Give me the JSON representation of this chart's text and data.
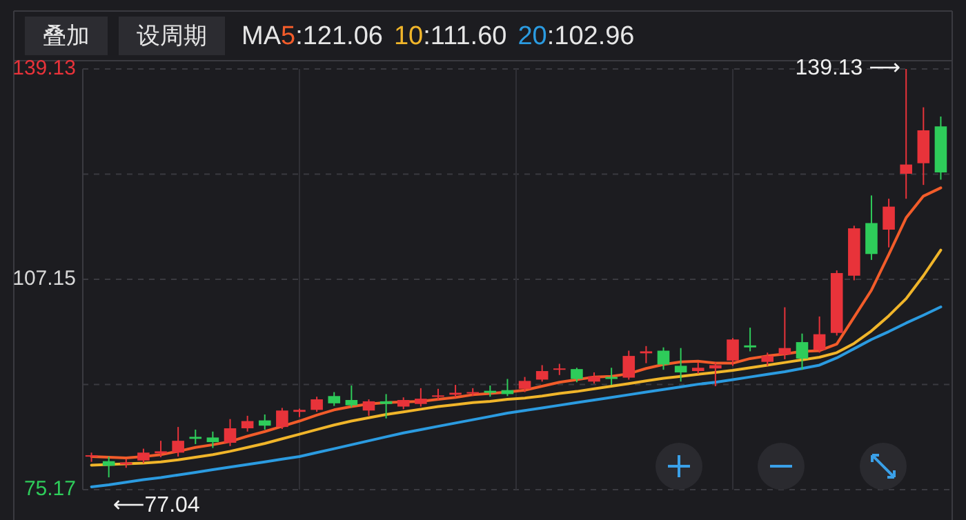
{
  "chart_data": {
    "type": "candlestick",
    "categories": [
      null,
      null,
      null,
      null,
      null,
      null,
      null,
      null,
      null,
      null,
      null,
      null,
      null,
      null,
      null,
      null,
      null,
      null,
      null,
      null,
      null,
      null,
      null,
      null,
      null,
      null,
      null,
      null,
      null,
      null,
      null,
      null,
      null,
      null,
      null,
      null,
      null,
      null,
      null,
      null,
      null,
      null,
      null,
      null,
      null,
      null,
      null,
      null,
      null,
      null
    ],
    "ohlc": [
      [
        80.2,
        80.8,
        79.4,
        80.4
      ],
      [
        79.5,
        80.2,
        77.04,
        78.8
      ],
      [
        79.0,
        79.8,
        78.5,
        79.3
      ],
      [
        79.6,
        81.4,
        79.2,
        80.8
      ],
      [
        80.7,
        82.6,
        80.1,
        81.0
      ],
      [
        80.8,
        84.7,
        80.2,
        82.6
      ],
      [
        83.2,
        84.3,
        82.1,
        82.9
      ],
      [
        83.1,
        84.0,
        81.5,
        82.4
      ],
      [
        82.3,
        85.9,
        81.8,
        84.5
      ],
      [
        84.5,
        86.4,
        84.0,
        85.6
      ],
      [
        85.7,
        86.6,
        84.3,
        84.9
      ],
      [
        84.7,
        87.6,
        84.4,
        87.2
      ],
      [
        87.0,
        87.5,
        86.2,
        87.3
      ],
      [
        87.3,
        89.3,
        87.0,
        88.9
      ],
      [
        89.4,
        90.0,
        87.9,
        88.3
      ],
      [
        88.8,
        91.0,
        87.7,
        88.0
      ],
      [
        87.2,
        88.9,
        86.4,
        88.6
      ],
      [
        88.6,
        89.7,
        86.0,
        88.2
      ],
      [
        87.8,
        89.2,
        87.4,
        88.8
      ],
      [
        88.2,
        90.6,
        87.8,
        89.0
      ],
      [
        89.3,
        90.5,
        88.8,
        89.5
      ],
      [
        89.6,
        91.1,
        89.2,
        89.9
      ],
      [
        89.8,
        90.6,
        89.4,
        90.0
      ],
      [
        90.2,
        91.0,
        89.3,
        89.9
      ],
      [
        90.3,
        92.0,
        89.4,
        89.7
      ],
      [
        90.5,
        92.3,
        90.0,
        91.7
      ],
      [
        91.9,
        94.1,
        91.6,
        93.2
      ],
      [
        93.4,
        94.3,
        92.6,
        93.6
      ],
      [
        93.5,
        93.7,
        91.5,
        92.0
      ],
      [
        91.6,
        93.0,
        91.3,
        92.4
      ],
      [
        92.3,
        93.7,
        91.1,
        92.0
      ],
      [
        92.2,
        96.3,
        91.9,
        95.5
      ],
      [
        95.9,
        97.0,
        94.4,
        96.2
      ],
      [
        96.3,
        96.8,
        93.4,
        94.2
      ],
      [
        94.0,
        96.7,
        91.6,
        93.0
      ],
      [
        93.2,
        94.5,
        92.8,
        93.7
      ],
      [
        93.6,
        94.5,
        90.9,
        94.1
      ],
      [
        94.8,
        98.2,
        94.0,
        98.0
      ],
      [
        97.1,
        99.8,
        96.2,
        96.8
      ],
      [
        94.6,
        96.0,
        94.0,
        95.5
      ],
      [
        95.7,
        102.9,
        95.0,
        96.7
      ],
      [
        97.6,
        98.9,
        93.4,
        95.1
      ],
      [
        96.4,
        101.5,
        96.0,
        98.8
      ],
      [
        99.0,
        108.5,
        98.6,
        108.1
      ],
      [
        107.7,
        115.3,
        107.0,
        114.9
      ],
      [
        115.7,
        119.9,
        110.1,
        111.0
      ],
      [
        114.7,
        119.4,
        112.0,
        118.2
      ],
      [
        123.2,
        139.13,
        119.4,
        124.6
      ],
      [
        124.8,
        133.3,
        121.5,
        129.8
      ],
      [
        130.4,
        131.9,
        122.3,
        123.4
      ]
    ],
    "colors": [
      "#e8333a",
      "#2ecc5a",
      "#e8333a",
      "#e8333a",
      "#e8333a",
      "#e8333a",
      "#2ecc5a",
      "#2ecc5a",
      "#e8333a",
      "#e8333a",
      "#2ecc5a",
      "#e8333a",
      "#e8333a",
      "#e8333a",
      "#2ecc5a",
      "#2ecc5a",
      "#e8333a",
      "#2ecc5a",
      "#e8333a",
      "#e8333a",
      "#e8333a",
      "#e8333a",
      "#e8333a",
      "#2ecc5a",
      "#2ecc5a",
      "#e8333a",
      "#e8333a",
      "#e8333a",
      "#2ecc5a",
      "#e8333a",
      "#2ecc5a",
      "#e8333a",
      "#e8333a",
      "#2ecc5a",
      "#2ecc5a",
      "#e8333a",
      "#e8333a",
      "#e8333a",
      "#2ecc5a",
      "#e8333a",
      "#e8333a",
      "#2ecc5a",
      "#e8333a",
      "#e8333a",
      "#e8333a",
      "#2ecc5a",
      "#e8333a",
      "#e8333a",
      "#e8333a",
      "#2ecc5a"
    ],
    "series": [
      {
        "type": "line",
        "name": "5",
        "color": "#f25c2a",
        "values": [
          80.2,
          80.1,
          80.0,
          80.2,
          80.5,
          81.0,
          81.6,
          82.0,
          82.5,
          83.3,
          84.0,
          84.8,
          85.6,
          86.5,
          87.3,
          87.8,
          88.2,
          88.4,
          88.5,
          88.6,
          88.9,
          89.2,
          89.6,
          89.8,
          90.0,
          90.3,
          90.9,
          91.5,
          91.9,
          92.3,
          92.4,
          92.8,
          93.6,
          94.2,
          94.6,
          94.7,
          94.4,
          94.4,
          95.1,
          95.5,
          95.8,
          96.2,
          96.3,
          97.3,
          101.4,
          105.5,
          110.9,
          116.5,
          119.8,
          121.06
        ]
      },
      {
        "type": "line",
        "name": "10",
        "color": "#f0b52a",
        "values": [
          78.9,
          79.0,
          79.1,
          79.2,
          79.4,
          79.7,
          80.1,
          80.5,
          81.0,
          81.6,
          82.2,
          82.9,
          83.6,
          84.3,
          85.0,
          85.6,
          86.1,
          86.6,
          87.0,
          87.4,
          87.8,
          88.1,
          88.4,
          88.6,
          88.9,
          89.1,
          89.4,
          89.8,
          90.1,
          90.5,
          90.9,
          91.3,
          91.7,
          92.1,
          92.4,
          92.7,
          93.0,
          93.3,
          93.7,
          94.1,
          94.5,
          94.9,
          95.3,
          96.0,
          97.4,
          99.3,
          101.6,
          104.2,
          107.7,
          111.6
        ]
      },
      {
        "type": "line",
        "name": "20",
        "color": "#2b9be0",
        "values": [
          75.6,
          75.9,
          76.3,
          76.7,
          77.0,
          77.4,
          77.8,
          78.2,
          78.6,
          79.0,
          79.4,
          79.8,
          80.2,
          80.8,
          81.4,
          82.0,
          82.6,
          83.2,
          83.8,
          84.3,
          84.8,
          85.3,
          85.8,
          86.3,
          86.8,
          87.2,
          87.6,
          88.0,
          88.4,
          88.8,
          89.2,
          89.6,
          90.0,
          90.4,
          90.8,
          91.2,
          91.5,
          91.9,
          92.3,
          92.7,
          93.1,
          93.6,
          94.1,
          95.2,
          96.6,
          98.0,
          99.2,
          100.5,
          101.7,
          102.96
        ]
      }
    ],
    "legend_title": "MA",
    "legend": "top left",
    "ylim": [
      75.17,
      139.13
    ],
    "yticks": [
      139.13,
      {
        "value": 123.14,
        "label": null
      },
      107.15,
      {
        "value": 91.16,
        "label": null
      },
      75.17
    ],
    "grid": true,
    "annotations": [
      "叠加",
      "设周期",
      "139.13 ⟶",
      "⟵77.04",
      ":121.06",
      ":111.60",
      ":102.96"
    ]
  }
}
